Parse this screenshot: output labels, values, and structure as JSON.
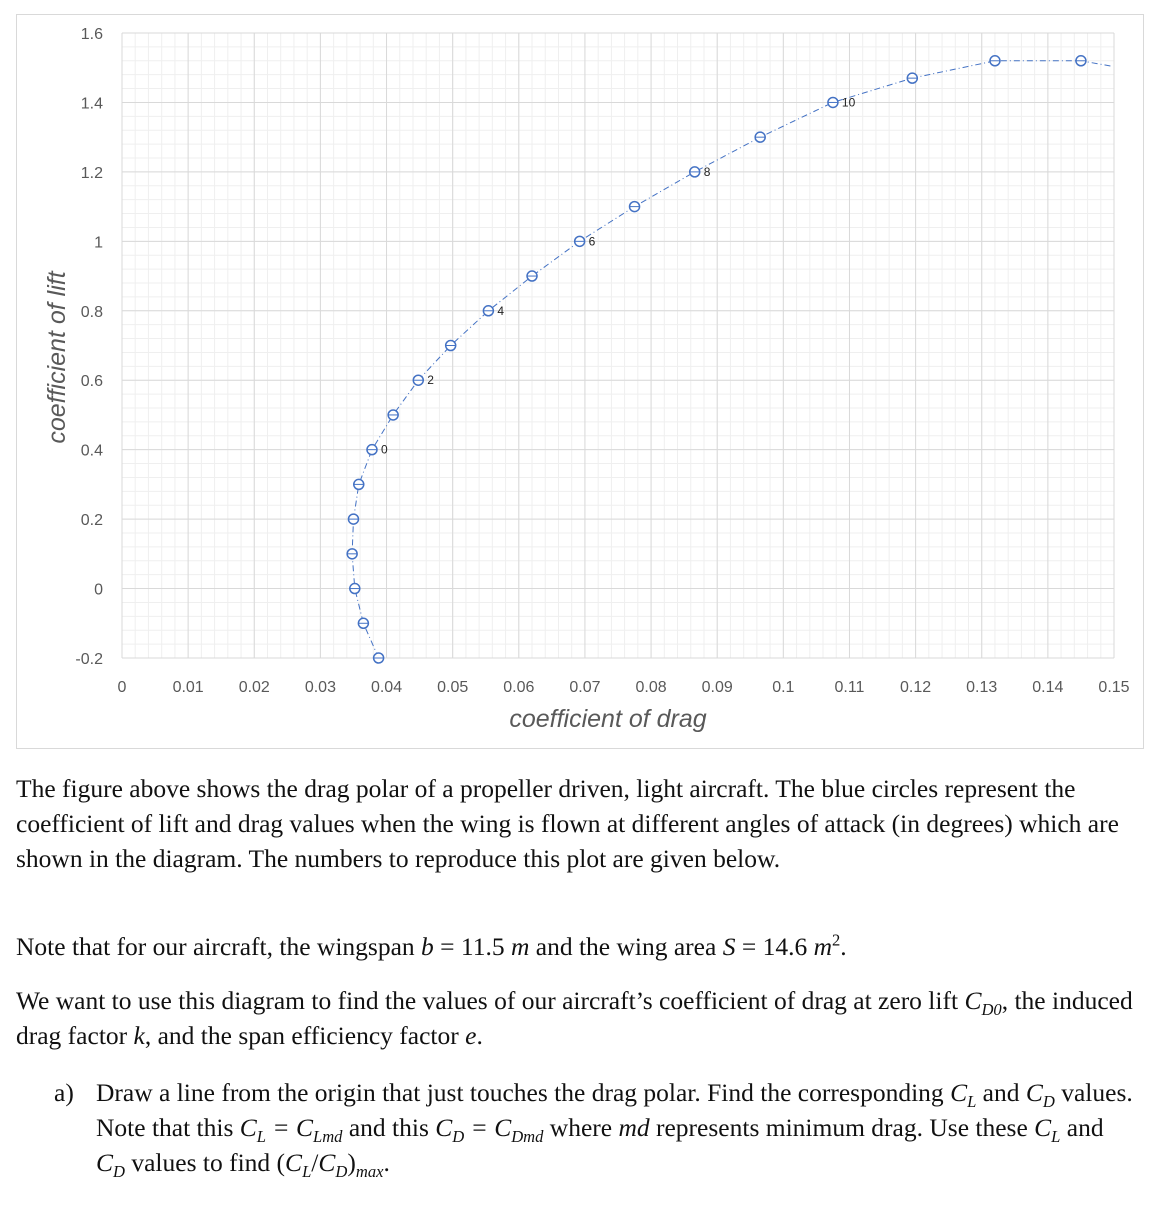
{
  "chart_data": {
    "type": "scatter",
    "title": "",
    "xlabel": "coefficient of drag",
    "ylabel": "coefficient of lift",
    "xlim": [
      0,
      0.15
    ],
    "ylim": [
      -0.2,
      1.6
    ],
    "xticks": [
      "0",
      "0.01",
      "0.02",
      "0.03",
      "0.04",
      "0.05",
      "0.06",
      "0.07",
      "0.08",
      "0.09",
      "0.1",
      "0.11",
      "0.12",
      "0.13",
      "0.14",
      "0.15"
    ],
    "yticks": [
      "-0.2",
      "0",
      "0.2",
      "0.4",
      "0.6",
      "0.8",
      "1",
      "1.2",
      "1.4",
      "1.6"
    ],
    "grid": true,
    "marker_color": "#4472c4",
    "line_style": "dash-dot",
    "series": [
      {
        "x": [
          0.0388,
          0.0365,
          0.0352,
          0.0348,
          0.035,
          0.0358,
          0.0378,
          0.041,
          0.0448,
          0.0497,
          0.0554,
          0.062,
          0.0692,
          0.0775,
          0.0866,
          0.0965,
          0.1075,
          0.1195,
          0.132,
          0.145
        ],
        "y": [
          -0.2,
          -0.1,
          0.0,
          0.1,
          0.2,
          0.3,
          0.4,
          0.5,
          0.6,
          0.7,
          0.8,
          0.9,
          1.0,
          1.1,
          1.2,
          1.3,
          1.4,
          1.47,
          1.52,
          1.52
        ],
        "labels": [
          "",
          "",
          "",
          "",
          "",
          "",
          "0",
          "",
          "2",
          "",
          "4",
          "",
          "6",
          "",
          "8",
          "",
          "10",
          "",
          "",
          ""
        ]
      }
    ]
  },
  "text": {
    "para1": "The figure above shows the drag polar of a propeller driven, light aircraft. The blue circles represent the coefficient of lift and drag values when the wing is flown at different angles of attack (in degrees) which are shown in the diagram. The numbers to reproduce this plot are given below.",
    "para2_a": "Note that for our aircraft, the wingspan",
    "para2_b": "b",
    "para2_c": " = 11.5",
    "para2_d": "m",
    "para2_e": " and the wing area",
    "para2_f": "S",
    "para2_g": " = 14.6",
    "para2_h": "m",
    "para2_i": "2",
    "para2_j": ".",
    "para3_a": "We want to use this diagram to find the values of our aircraft’s coefficient of drag at zero lift",
    "para3_b": "C",
    "para3_c": "D0",
    "para3_d": ",",
    "para3_e": "the induced drag factor",
    "para3_f": "k",
    "para3_g": ", and the span efficiency factor",
    "para3_h": "e",
    "para3_i": ".",
    "item_a_marker": "a)",
    "item_a_1": "Draw a line from the origin that just touches the drag polar. Find the corresponding",
    "item_a_CL": "C",
    "item_a_L": "L",
    "item_a_2": "and",
    "item_a_CD": "C",
    "item_a_D": "D",
    "item_a_3": "values. Note that this",
    "item_a_4": "= C",
    "item_a_Lmd": "Lmd",
    "item_a_5": "and this",
    "item_a_6": "= C",
    "item_a_Dmd": "Dmd",
    "item_a_7": "where",
    "item_a_md": "md",
    "item_a_8": "represents minimum drag. Use these",
    "item_a_9": "values to find (",
    "item_a_10": "/",
    "item_a_11": ")",
    "item_a_max": "max",
    "item_a_12": "."
  }
}
